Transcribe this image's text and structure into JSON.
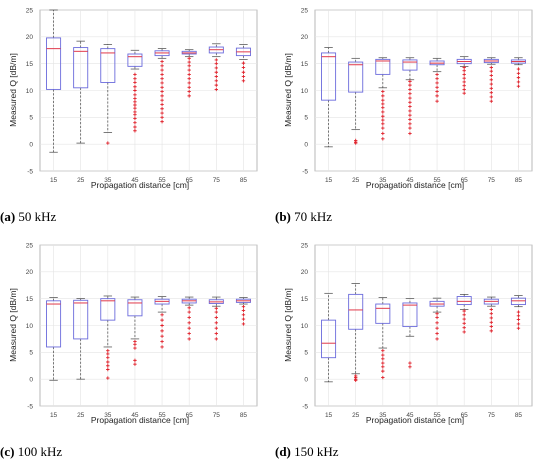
{
  "colors": {
    "box": "#6b6bdc",
    "median": "#e0394a",
    "outlier": "#e0202a",
    "whisker": "#444444",
    "grid": "#e4e4e4"
  },
  "chart_data": [
    {
      "type": "box",
      "caption_label": "(a)",
      "caption_text": "50 kHz",
      "xlabel": "Propagation distance [cm]",
      "ylabel": "Measured Q [dB/m]",
      "categories": [
        "15",
        "25",
        "35",
        "45",
        "55",
        "65",
        "75",
        "85"
      ],
      "yticks": [
        -5,
        0,
        5,
        10,
        15,
        20,
        25
      ],
      "ylim": [
        -5,
        25
      ],
      "grid": true,
      "boxes": [
        {
          "min": -1.5,
          "q1": 10.2,
          "median": 17.8,
          "q3": 19.8,
          "max": 25,
          "outliers": []
        },
        {
          "min": 0.2,
          "q1": 10.5,
          "median": 17.3,
          "q3": 18.0,
          "max": 19.2,
          "outliers": []
        },
        {
          "min": 2.2,
          "q1": 11.5,
          "median": 17.0,
          "q3": 17.8,
          "max": 18.6,
          "outliers": [
            0.2
          ]
        },
        {
          "min": 14.0,
          "q1": 14.5,
          "median": 16.3,
          "q3": 16.8,
          "max": 17.5,
          "outliers": [
            2.5,
            3.2,
            4.0,
            4.8,
            5.5,
            6.0,
            6.7,
            7.3,
            7.9,
            8.5,
            9.2,
            10.0,
            10.7,
            11.5,
            12.2,
            13.0
          ]
        },
        {
          "min": 16.0,
          "q1": 16.5,
          "median": 17.0,
          "q3": 17.4,
          "max": 17.8,
          "outliers": [
            4.2,
            5.0,
            5.8,
            6.6,
            7.4,
            8.2,
            9.0,
            9.8,
            10.6,
            11.4,
            12.2,
            13.0,
            13.8,
            14.6,
            15.4
          ]
        },
        {
          "min": 16.3,
          "q1": 16.8,
          "median": 17.0,
          "q3": 17.3,
          "max": 17.6,
          "outliers": [
            9.0,
            9.8,
            10.6,
            11.4,
            12.2,
            13.0,
            13.8,
            14.6,
            15.3,
            16.0
          ]
        },
        {
          "min": 16.3,
          "q1": 17.0,
          "median": 17.6,
          "q3": 18.1,
          "max": 18.7,
          "outliers": [
            10.2,
            11.0,
            11.8,
            12.6,
            13.4,
            14.2,
            15.0,
            15.7
          ]
        },
        {
          "min": 15.8,
          "q1": 16.5,
          "median": 17.2,
          "q3": 17.9,
          "max": 18.6,
          "outliers": [
            11.8,
            12.6,
            13.4,
            14.3,
            15.1
          ]
        }
      ]
    },
    {
      "type": "box",
      "caption_label": "(b)",
      "caption_text": "70 kHz",
      "xlabel": "Propagation distance [cm]",
      "ylabel": "Measured Q [dB/m]",
      "categories": [
        "15",
        "25",
        "35",
        "45",
        "55",
        "65",
        "75",
        "85"
      ],
      "yticks": [
        -5,
        0,
        5,
        10,
        15,
        20,
        25
      ],
      "ylim": [
        -5,
        25
      ],
      "grid": true,
      "boxes": [
        {
          "min": -0.5,
          "q1": 8.2,
          "median": 16.3,
          "q3": 17.0,
          "max": 18.0,
          "outliers": []
        },
        {
          "min": 2.7,
          "q1": 9.7,
          "median": 14.8,
          "q3": 15.3,
          "max": 16.0,
          "outliers": [
            0.2,
            0.4,
            0.7
          ]
        },
        {
          "min": 10.5,
          "q1": 13.0,
          "median": 15.5,
          "q3": 15.8,
          "max": 16.1,
          "outliers": [
            1.0,
            2.0,
            3.0,
            3.8,
            4.5,
            5.2,
            6.0,
            6.8,
            7.5,
            8.2,
            9.0,
            9.8
          ]
        },
        {
          "min": 12.0,
          "q1": 13.8,
          "median": 15.3,
          "q3": 15.7,
          "max": 16.1,
          "outliers": [
            2.0,
            3.0,
            3.8,
            4.6,
            5.4,
            6.2,
            7.0,
            7.8,
            8.6,
            9.4,
            10.2,
            11.0,
            11.7
          ]
        },
        {
          "min": 13.5,
          "q1": 14.8,
          "median": 15.1,
          "q3": 15.5,
          "max": 16.0,
          "outliers": [
            8.0,
            9.0,
            9.8,
            10.6,
            11.4,
            12.2,
            13.0
          ]
        },
        {
          "min": 14.5,
          "q1": 15.0,
          "median": 15.4,
          "q3": 15.8,
          "max": 16.3,
          "outliers": [
            9.5,
            10.2,
            10.9,
            11.6,
            12.3,
            13.0,
            13.7,
            14.3
          ]
        },
        {
          "min": 14.9,
          "q1": 15.2,
          "median": 15.5,
          "q3": 15.8,
          "max": 16.1,
          "outliers": [
            8.0,
            8.8,
            9.6,
            10.4,
            11.2,
            12.0,
            12.8,
            13.6,
            14.3
          ]
        },
        {
          "min": 14.8,
          "q1": 15.1,
          "median": 15.4,
          "q3": 15.7,
          "max": 16.1,
          "outliers": [
            10.8,
            11.6,
            12.4,
            13.2,
            14.0
          ]
        }
      ]
    },
    {
      "type": "box",
      "caption_label": "(c)",
      "caption_text": "100 kHz",
      "xlabel": "Propagation distance [cm]",
      "ylabel": "Measured Q [dB/m]",
      "categories": [
        "15",
        "25",
        "35",
        "45",
        "55",
        "65",
        "75",
        "85"
      ],
      "yticks": [
        -5,
        0,
        5,
        10,
        15,
        20,
        25
      ],
      "ylim": [
        -5,
        25
      ],
      "grid": true,
      "boxes": [
        {
          "min": -0.2,
          "q1": 6.0,
          "median": 14.0,
          "q3": 14.6,
          "max": 15.2,
          "outliers": []
        },
        {
          "min": 0.0,
          "q1": 7.5,
          "median": 14.2,
          "q3": 14.7,
          "max": 15.0,
          "outliers": []
        },
        {
          "min": 6.0,
          "q1": 11.0,
          "median": 14.6,
          "q3": 15.0,
          "max": 15.5,
          "outliers": [
            0.2,
            1.8,
            2.5,
            3.2,
            4.0,
            4.7,
            5.3
          ]
        },
        {
          "min": 7.5,
          "q1": 11.8,
          "median": 14.2,
          "q3": 14.8,
          "max": 15.3,
          "outliers": [
            2.8,
            3.5,
            5.8,
            6.5,
            7.0
          ]
        },
        {
          "min": 12.5,
          "q1": 14.0,
          "median": 14.5,
          "q3": 14.9,
          "max": 15.4,
          "outliers": [
            6.0,
            7.0,
            8.0,
            9.0,
            10.0,
            11.0,
            12.0
          ]
        },
        {
          "min": 13.8,
          "q1": 14.2,
          "median": 14.6,
          "q3": 14.9,
          "max": 15.3,
          "outliers": [
            7.5,
            8.5,
            9.5,
            10.5,
            11.5,
            12.5,
            13.3
          ]
        },
        {
          "min": 13.6,
          "q1": 14.1,
          "median": 14.4,
          "q3": 14.8,
          "max": 15.3,
          "outliers": [
            7.5,
            8.5,
            9.5,
            10.5,
            11.5,
            12.5,
            13.2
          ]
        },
        {
          "min": 14.0,
          "q1": 14.3,
          "median": 14.6,
          "q3": 14.9,
          "max": 15.2,
          "outliers": [
            10.3,
            11.2,
            12.0,
            12.8,
            13.5
          ]
        }
      ]
    },
    {
      "type": "box",
      "caption_label": "(d)",
      "caption_text": "150 kHz",
      "xlabel": "Propagation distance [cm]",
      "ylabel": "Measured Q [dB/m]",
      "categories": [
        "15",
        "25",
        "35",
        "45",
        "55",
        "65",
        "75",
        "85"
      ],
      "yticks": [
        -5,
        0,
        5,
        10,
        15,
        20,
        25
      ],
      "ylim": [
        -5,
        25
      ],
      "grid": true,
      "boxes": [
        {
          "min": -0.5,
          "q1": 4.0,
          "median": 6.7,
          "q3": 11.0,
          "max": 16.0,
          "outliers": []
        },
        {
          "min": 1.0,
          "q1": 9.3,
          "median": 12.9,
          "q3": 15.8,
          "max": 17.8,
          "outliers": [
            -0.2,
            0.0,
            0.3,
            0.6
          ]
        },
        {
          "min": 5.8,
          "q1": 10.4,
          "median": 13.2,
          "q3": 14.0,
          "max": 15.2,
          "outliers": [
            0.3,
            1.5,
            2.3,
            3.0,
            3.8,
            4.5,
            5.3
          ]
        },
        {
          "min": 8.0,
          "q1": 9.8,
          "median": 13.8,
          "q3": 14.2,
          "max": 15.0,
          "outliers": [
            2.3,
            3.0
          ]
        },
        {
          "min": 12.5,
          "q1": 13.6,
          "median": 14.0,
          "q3": 14.5,
          "max": 15.1,
          "outliers": [
            7.5,
            8.5,
            9.5,
            10.5,
            11.5,
            12.2
          ]
        },
        {
          "min": 13.0,
          "q1": 13.9,
          "median": 14.5,
          "q3": 15.4,
          "max": 15.8,
          "outliers": [
            8.8,
            9.6,
            10.4,
            11.2,
            12.0,
            12.7
          ]
        },
        {
          "min": 13.6,
          "q1": 14.0,
          "median": 14.5,
          "q3": 14.9,
          "max": 15.3,
          "outliers": [
            9.0,
            9.8,
            10.6,
            11.4,
            12.2,
            13.0
          ]
        },
        {
          "min": 13.5,
          "q1": 13.9,
          "median": 14.6,
          "q3": 15.1,
          "max": 15.6,
          "outliers": [
            9.5,
            10.3,
            11.1,
            11.8,
            12.5
          ]
        }
      ]
    }
  ]
}
